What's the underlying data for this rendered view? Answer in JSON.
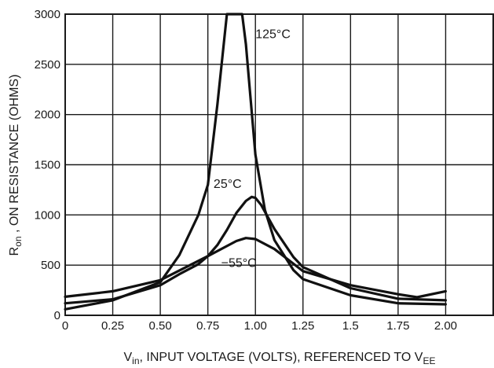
{
  "chart_data": {
    "type": "line",
    "xlabel": {
      "main": "V",
      "sub": "in",
      "rest": ", INPUT VOLTAGE (VOLTS), REFERENCED TO V",
      "sub2": "EE"
    },
    "ylabel": {
      "main": "R",
      "sub": "on",
      "rest": " , ON RESISTANCE (OHMS)"
    },
    "x_ticks": [
      "0",
      "0.25",
      "0.50",
      "0.75",
      "1.00",
      "1.25",
      "1.5",
      "1.75",
      "2.00"
    ],
    "y_ticks": [
      "0",
      "500",
      "1000",
      "1500",
      "2000",
      "2500",
      "3000"
    ],
    "xlim": [
      0,
      2.25
    ],
    "ylim": [
      0,
      3000
    ],
    "grid": true,
    "series": [
      {
        "name": "125°C",
        "x": [
          0,
          0.25,
          0.5,
          0.6,
          0.7,
          0.75,
          0.8,
          0.85,
          0.875,
          0.93,
          0.95,
          1.0,
          1.05,
          1.1,
          1.2,
          1.25,
          1.5,
          1.75,
          2.0
        ],
        "y": [
          60,
          150,
          330,
          600,
          1000,
          1300,
          2100,
          3000,
          3000,
          3000,
          2700,
          1600,
          1050,
          750,
          450,
          360,
          200,
          120,
          110
        ]
      },
      {
        "name": "25°C",
        "x": [
          0,
          0.25,
          0.5,
          0.6,
          0.7,
          0.75,
          0.8,
          0.85,
          0.9,
          0.95,
          0.98,
          1.0,
          1.03,
          1.1,
          1.2,
          1.25,
          1.5,
          1.75,
          2.0
        ],
        "y": [
          120,
          160,
          300,
          410,
          510,
          590,
          700,
          850,
          1020,
          1140,
          1180,
          1170,
          1100,
          860,
          580,
          480,
          270,
          165,
          150
        ]
      },
      {
        "name": "−55°C",
        "x": [
          0,
          0.25,
          0.5,
          0.75,
          0.9,
          0.95,
          1.0,
          1.1,
          1.25,
          1.5,
          1.75,
          1.85,
          2.0
        ],
        "y": [
          185,
          240,
          350,
          590,
          740,
          770,
          760,
          660,
          440,
          300,
          210,
          180,
          240
        ]
      }
    ],
    "labels": [
      {
        "text": "125°C",
        "x": 1.0,
        "y": 2760
      },
      {
        "text": "25°C",
        "x": 0.78,
        "y": 1270
      },
      {
        "text": "−55°C",
        "x": 0.82,
        "y": 480
      }
    ]
  }
}
